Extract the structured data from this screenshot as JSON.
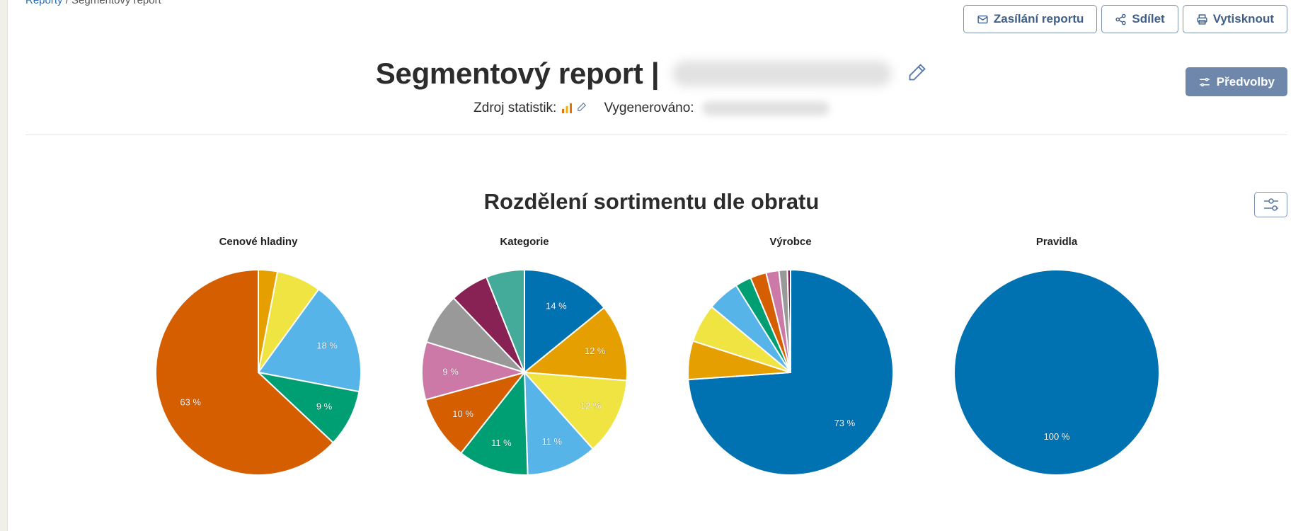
{
  "breadcrumb": {
    "link": "Reporty",
    "separator": "/",
    "current": "Segmentový report"
  },
  "toolbar": {
    "send_report": "Zasílání reportu",
    "share": "Sdílet",
    "print": "Vytisknout",
    "preferences": "Předvolby"
  },
  "header": {
    "title": "Segmentový report |",
    "source_label": "Zdroj statistik:",
    "generated_label": "Vygenerováno:"
  },
  "section": {
    "title": "Rozdělení sortimentu dle obratu"
  },
  "colors": {
    "blue": "#0072b2",
    "orange": "#e69f00",
    "yellow": "#f0e442",
    "skyblue": "#56b4e9",
    "green": "#009e73",
    "vermilion": "#d55e00",
    "pink": "#cc79a7",
    "gray": "#999999",
    "maroon": "#882255",
    "teal": "#44aa99",
    "accent": "#6e87aa"
  },
  "chart_data": [
    {
      "type": "pie",
      "title": "Cenové hladiny",
      "values": [
        3,
        7,
        18,
        9,
        63
      ],
      "labels": [
        "",
        "",
        "18 %",
        "9 %",
        "63 %"
      ],
      "colors": [
        "#e69f00",
        "#f0e442",
        "#56b4e9",
        "#009e73",
        "#d55e00"
      ]
    },
    {
      "type": "pie",
      "title": "Kategorie",
      "values": [
        14,
        12,
        12,
        11,
        11,
        10,
        9,
        8,
        6,
        6
      ],
      "labels": [
        "14 %",
        "12 %",
        "12 %",
        "11 %",
        "11 %",
        "10 %",
        "9 %",
        "",
        "",
        ""
      ],
      "colors": [
        "#0072b2",
        "#e69f00",
        "#f0e442",
        "#56b4e9",
        "#009e73",
        "#d55e00",
        "#cc79a7",
        "#999999",
        "#882255",
        "#44aa99"
      ]
    },
    {
      "type": "pie",
      "title": "Výrobce",
      "values": [
        73,
        6,
        6,
        5,
        2.5,
        2.5,
        2,
        1.3,
        0.5
      ],
      "labels": [
        "73 %",
        "",
        "",
        "",
        "",
        "",
        "",
        "",
        ""
      ],
      "colors": [
        "#0072b2",
        "#e69f00",
        "#f0e442",
        "#56b4e9",
        "#009e73",
        "#d55e00",
        "#cc79a7",
        "#999999",
        "#882255"
      ]
    },
    {
      "type": "pie",
      "title": "Pravidla",
      "values": [
        100
      ],
      "labels": [
        "100 %"
      ],
      "colors": [
        "#0072b2"
      ]
    }
  ]
}
